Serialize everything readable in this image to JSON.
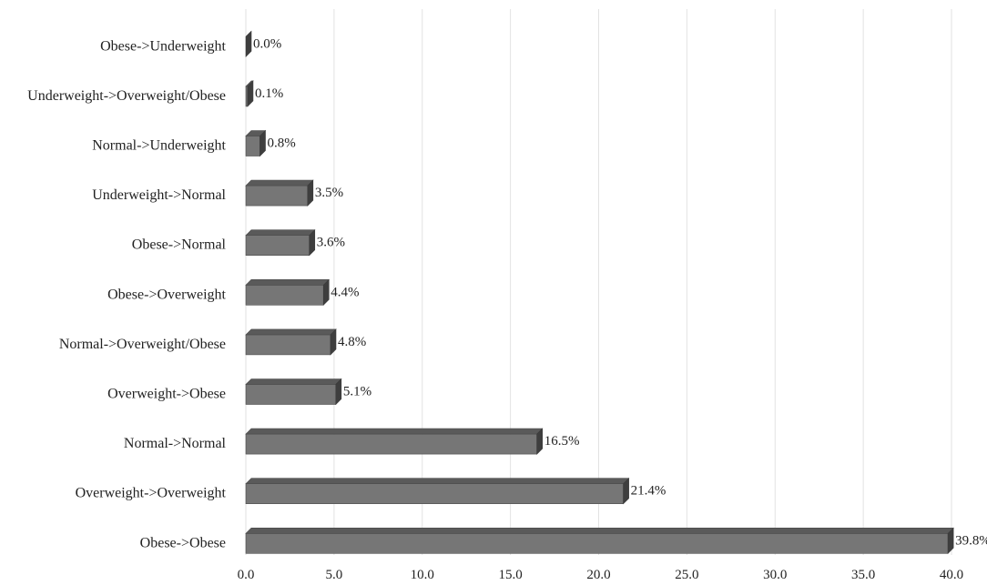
{
  "chart_data": {
    "type": "bar",
    "orientation": "horizontal",
    "style": "3d",
    "bar_color": "#767676",
    "bar_top_color": "#5a5a5a",
    "bar_side_color": "#3e3e3e",
    "grid": true,
    "categories": [
      "Obese->Underweight",
      "Underweight->Overweight/Obese",
      "Normal->Underweight",
      "Underweight->Normal",
      "Obese->Normal",
      "Obese->Overweight",
      "Normal->Overweight/Obese",
      "Overweight->Obese",
      "Normal->Normal",
      "Overweight->Overweight",
      "Obese->Obese"
    ],
    "values": [
      0.0,
      0.1,
      0.8,
      3.5,
      3.6,
      4.4,
      4.8,
      5.1,
      16.5,
      21.4,
      39.8
    ],
    "data_labels": [
      "0.0%",
      "0.1%",
      "0.8%",
      "3.5%",
      "3.6%",
      "4.4%",
      "4.8%",
      "5.1%",
      "16.5%",
      "21.4%",
      "39.8%"
    ],
    "xlim": [
      0,
      40
    ],
    "x_ticks": [
      "0.0",
      "5.0",
      "10.0",
      "15.0",
      "20.0",
      "25.0",
      "30.0",
      "35.0",
      "40.0"
    ],
    "title": "",
    "xlabel": "",
    "ylabel": ""
  }
}
